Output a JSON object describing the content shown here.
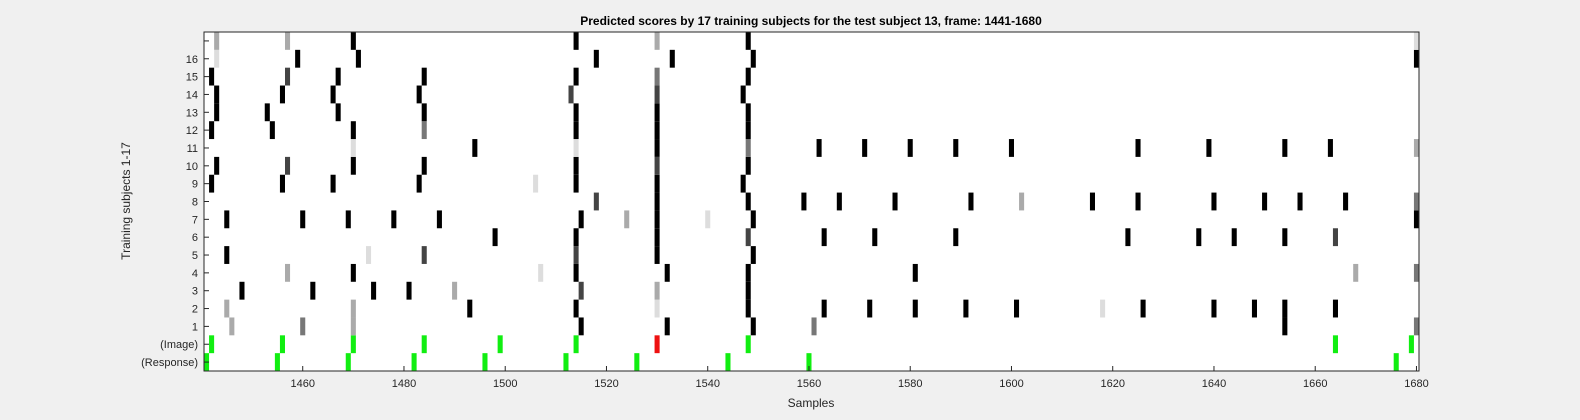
{
  "chart_data": {
    "type": "heatmap",
    "title": "Predicted scores by 17 training subjects for the test subject 13, frame: 1441-1680",
    "xlabel": "Samples",
    "ylabel": "Training subjects 1-17",
    "xlim": [
      1441,
      1680
    ],
    "x_ticks": [
      1460,
      1480,
      1500,
      1520,
      1540,
      1560,
      1580,
      1600,
      1620,
      1640,
      1660,
      1680
    ],
    "rows": [
      "(Response)",
      "(Image)",
      "1",
      "2",
      "3",
      "4",
      "5",
      "6",
      "7",
      "8",
      "9",
      "10",
      "11",
      "12",
      "13",
      "14",
      "15",
      "16",
      "17"
    ],
    "y_tick_labels": [
      "(Response)",
      "(Image)",
      "1",
      "2",
      "3",
      "4",
      "5",
      "6",
      "7",
      "8",
      "9",
      "10",
      "11",
      "12",
      "13",
      "14",
      "15",
      "16",
      ""
    ],
    "colors": {
      "black": "#000000",
      "dark": "#444444",
      "mid": "#777777",
      "light": "#aaaaaa",
      "faint": "#dddddd",
      "green": "#11ee11",
      "red": "#ee1111",
      "background": "#ffffff"
    },
    "marks": {
      "(Response)": [
        [
          1441,
          "green"
        ],
        [
          1455,
          "green"
        ],
        [
          1469,
          "green"
        ],
        [
          1482,
          "green"
        ],
        [
          1496,
          "green"
        ],
        [
          1512,
          "green"
        ],
        [
          1526,
          "green"
        ],
        [
          1544,
          "green"
        ],
        [
          1560,
          "green"
        ],
        [
          1676,
          "green"
        ]
      ],
      "(Image)": [
        [
          1442,
          "green"
        ],
        [
          1456,
          "green"
        ],
        [
          1470,
          "green"
        ],
        [
          1484,
          "green"
        ],
        [
          1499,
          "green"
        ],
        [
          1514,
          "green"
        ],
        [
          1530,
          "red"
        ],
        [
          1548,
          "green"
        ],
        [
          1664,
          "green"
        ],
        [
          1679,
          "green"
        ]
      ],
      "1": [
        [
          1446,
          "light"
        ],
        [
          1460,
          "mid"
        ],
        [
          1470,
          "light"
        ],
        [
          1515,
          "black"
        ],
        [
          1532,
          "black"
        ],
        [
          1549,
          "black"
        ],
        [
          1561,
          "mid"
        ],
        [
          1654,
          "black"
        ],
        [
          1680,
          "mid"
        ]
      ],
      "2": [
        [
          1445,
          "light"
        ],
        [
          1470,
          "light"
        ],
        [
          1493,
          "black"
        ],
        [
          1514,
          "black"
        ],
        [
          1530,
          "faint"
        ],
        [
          1548,
          "black"
        ],
        [
          1563,
          "black"
        ],
        [
          1572,
          "black"
        ],
        [
          1581,
          "black"
        ],
        [
          1591,
          "black"
        ],
        [
          1601,
          "black"
        ],
        [
          1618,
          "faint"
        ],
        [
          1626,
          "black"
        ],
        [
          1640,
          "black"
        ],
        [
          1648,
          "black"
        ],
        [
          1654,
          "black"
        ],
        [
          1664,
          "black"
        ]
      ],
      "3": [
        [
          1448,
          "black"
        ],
        [
          1462,
          "black"
        ],
        [
          1474,
          "black"
        ],
        [
          1481,
          "black"
        ],
        [
          1490,
          "light"
        ],
        [
          1515,
          "dark"
        ],
        [
          1530,
          "light"
        ],
        [
          1548,
          "black"
        ]
      ],
      "4": [
        [
          1457,
          "light"
        ],
        [
          1470,
          "black"
        ],
        [
          1507,
          "faint"
        ],
        [
          1514,
          "black"
        ],
        [
          1532,
          "black"
        ],
        [
          1548,
          "black"
        ],
        [
          1581,
          "black"
        ],
        [
          1668,
          "light"
        ],
        [
          1680,
          "mid"
        ]
      ],
      "5": [
        [
          1445,
          "black"
        ],
        [
          1473,
          "faint"
        ],
        [
          1484,
          "dark"
        ],
        [
          1514,
          "dark"
        ],
        [
          1530,
          "black"
        ],
        [
          1549,
          "black"
        ]
      ],
      "6": [
        [
          1498,
          "black"
        ],
        [
          1514,
          "black"
        ],
        [
          1530,
          "black"
        ],
        [
          1548,
          "dark"
        ],
        [
          1563,
          "black"
        ],
        [
          1573,
          "black"
        ],
        [
          1589,
          "black"
        ],
        [
          1623,
          "black"
        ],
        [
          1637,
          "black"
        ],
        [
          1644,
          "black"
        ],
        [
          1654,
          "black"
        ],
        [
          1664,
          "dark"
        ]
      ],
      "7": [
        [
          1445,
          "black"
        ],
        [
          1460,
          "black"
        ],
        [
          1469,
          "black"
        ],
        [
          1478,
          "black"
        ],
        [
          1487,
          "black"
        ],
        [
          1515,
          "black"
        ],
        [
          1524,
          "light"
        ],
        [
          1530,
          "black"
        ],
        [
          1540,
          "faint"
        ],
        [
          1549,
          "black"
        ],
        [
          1680,
          "black"
        ]
      ],
      "8": [
        [
          1518,
          "dark"
        ],
        [
          1530,
          "black"
        ],
        [
          1548,
          "black"
        ],
        [
          1559,
          "black"
        ],
        [
          1566,
          "black"
        ],
        [
          1577,
          "black"
        ],
        [
          1592,
          "black"
        ],
        [
          1602,
          "light"
        ],
        [
          1616,
          "black"
        ],
        [
          1625,
          "black"
        ],
        [
          1640,
          "black"
        ],
        [
          1650,
          "black"
        ],
        [
          1657,
          "black"
        ],
        [
          1666,
          "black"
        ],
        [
          1680,
          "mid"
        ]
      ],
      "9": [
        [
          1442,
          "black"
        ],
        [
          1456,
          "black"
        ],
        [
          1466,
          "black"
        ],
        [
          1483,
          "black"
        ],
        [
          1506,
          "faint"
        ],
        [
          1514,
          "black"
        ],
        [
          1530,
          "black"
        ],
        [
          1547,
          "black"
        ]
      ],
      "10": [
        [
          1443,
          "black"
        ],
        [
          1457,
          "dark"
        ],
        [
          1470,
          "black"
        ],
        [
          1484,
          "black"
        ],
        [
          1514,
          "black"
        ],
        [
          1530,
          "dark"
        ],
        [
          1548,
          "black"
        ]
      ],
      "11": [
        [
          1470,
          "faint"
        ],
        [
          1494,
          "black"
        ],
        [
          1514,
          "faint"
        ],
        [
          1530,
          "black"
        ],
        [
          1548,
          "mid"
        ],
        [
          1562,
          "black"
        ],
        [
          1571,
          "black"
        ],
        [
          1580,
          "black"
        ],
        [
          1589,
          "black"
        ],
        [
          1600,
          "black"
        ],
        [
          1625,
          "black"
        ],
        [
          1639,
          "black"
        ],
        [
          1654,
          "black"
        ],
        [
          1663,
          "black"
        ],
        [
          1680,
          "light"
        ]
      ],
      "12": [
        [
          1442,
          "black"
        ],
        [
          1454,
          "black"
        ],
        [
          1470,
          "black"
        ],
        [
          1484,
          "mid"
        ],
        [
          1514,
          "black"
        ],
        [
          1530,
          "black"
        ],
        [
          1548,
          "black"
        ]
      ],
      "13": [
        [
          1443,
          "black"
        ],
        [
          1453,
          "black"
        ],
        [
          1467,
          "black"
        ],
        [
          1484,
          "black"
        ],
        [
          1514,
          "black"
        ],
        [
          1530,
          "black"
        ],
        [
          1548,
          "black"
        ]
      ],
      "14": [
        [
          1443,
          "black"
        ],
        [
          1456,
          "black"
        ],
        [
          1466,
          "black"
        ],
        [
          1483,
          "black"
        ],
        [
          1513,
          "dark"
        ],
        [
          1530,
          "dark"
        ],
        [
          1547,
          "black"
        ]
      ],
      "15": [
        [
          1442,
          "black"
        ],
        [
          1457,
          "dark"
        ],
        [
          1467,
          "black"
        ],
        [
          1484,
          "black"
        ],
        [
          1514,
          "black"
        ],
        [
          1530,
          "mid"
        ],
        [
          1548,
          "black"
        ]
      ],
      "16": [
        [
          1443,
          "faint"
        ],
        [
          1459,
          "black"
        ],
        [
          1471,
          "black"
        ],
        [
          1518,
          "black"
        ],
        [
          1533,
          "black"
        ],
        [
          1549,
          "black"
        ],
        [
          1680,
          "black"
        ]
      ],
      "17": [
        [
          1443,
          "light"
        ],
        [
          1457,
          "light"
        ],
        [
          1470,
          "black"
        ],
        [
          1514,
          "black"
        ],
        [
          1530,
          "light"
        ],
        [
          1548,
          "black"
        ],
        [
          1680,
          "faint"
        ]
      ]
    }
  }
}
